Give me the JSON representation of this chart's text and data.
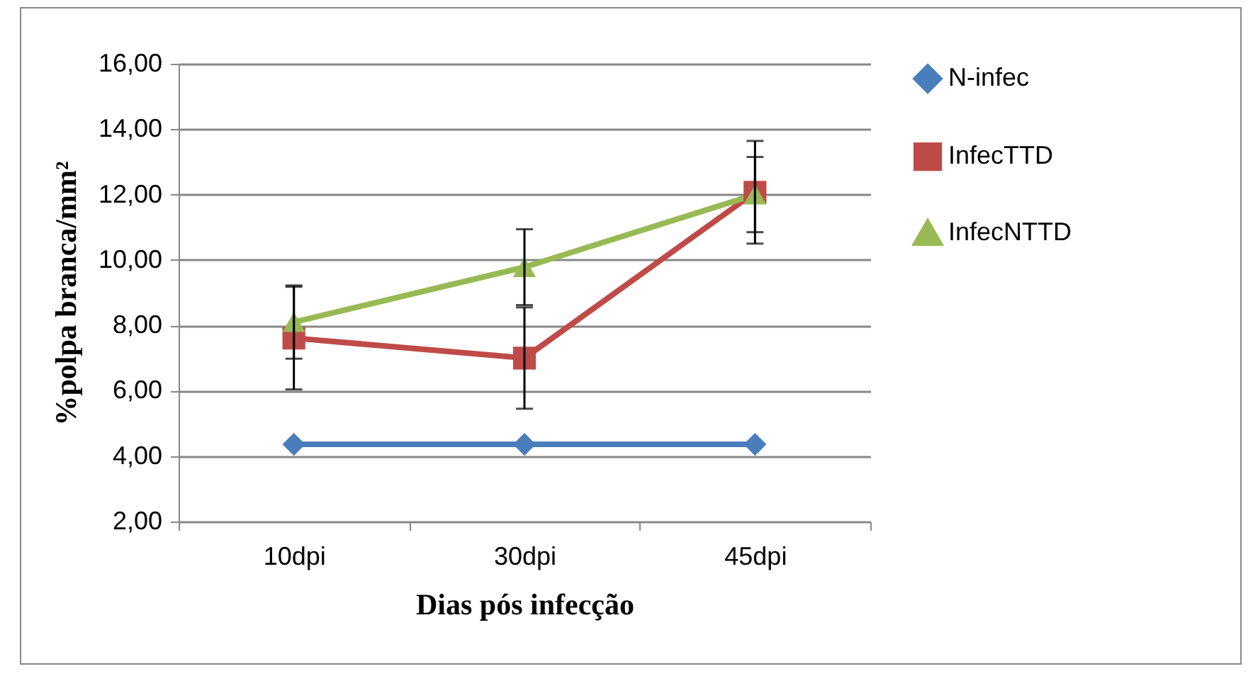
{
  "chart_data": {
    "type": "line",
    "xlabel": "Dias pós infecção",
    "ylabel": "%polpa branca/mm²",
    "categories": [
      "10dpi",
      "30dpi",
      "45dpi"
    ],
    "series": [
      {
        "name": "N-infec",
        "color": "#4a7ebb",
        "marker": "diamond",
        "values": [
          4.36,
          4.36,
          4.36
        ]
      },
      {
        "name": "InfecTTD",
        "color": "#be4b48",
        "marker": "square",
        "values": [
          7.61,
          7.0,
          12.07
        ],
        "errors": [
          1.57,
          1.55,
          1.57
        ]
      },
      {
        "name": "InfecNTTD",
        "color": "#98b954",
        "marker": "triangle",
        "values": [
          8.1,
          9.78,
          12.0
        ],
        "errors": [
          1.12,
          1.16,
          1.15
        ]
      }
    ],
    "ylim": [
      2,
      16
    ],
    "yticks": [
      {
        "value": 2,
        "label": "2,00"
      },
      {
        "value": 4,
        "label": "4,00"
      },
      {
        "value": 6,
        "label": "6,00"
      },
      {
        "value": 8,
        "label": "8,00"
      },
      {
        "value": 10,
        "label": "10,00"
      },
      {
        "value": 12,
        "label": "12,00"
      },
      {
        "value": 14,
        "label": "14,00"
      },
      {
        "value": 16,
        "label": "16,00"
      }
    ],
    "grid": "y",
    "legend": "right"
  }
}
